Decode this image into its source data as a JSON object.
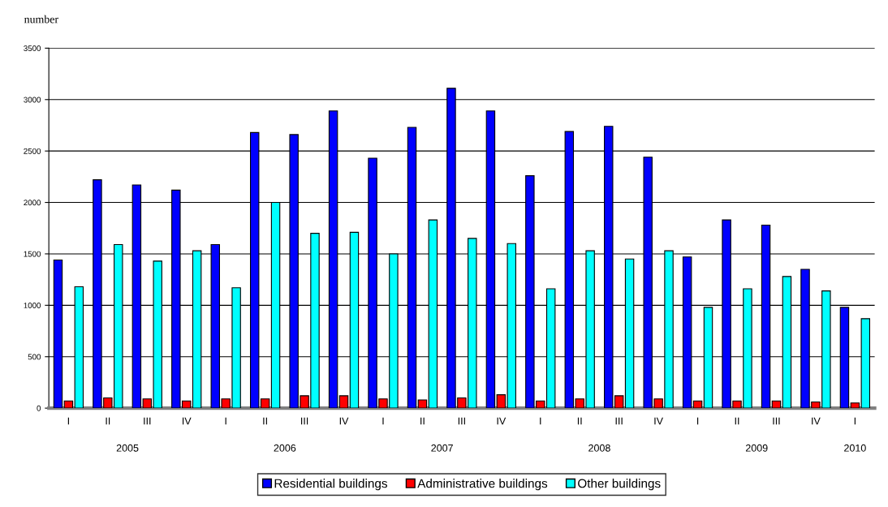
{
  "chart_data": {
    "type": "bar",
    "ylabel": "number",
    "categories": [
      "I",
      "II",
      "III",
      "IV",
      "I",
      "II",
      "III",
      "IV",
      "I",
      "II",
      "III",
      "IV",
      "I",
      "II",
      "III",
      "IV",
      "I",
      "II",
      "III",
      "IV",
      "I"
    ],
    "series": [
      {
        "name": "Residential buildings",
        "color": "#0000ff",
        "values": [
          1440,
          2220,
          2170,
          2120,
          1590,
          2680,
          2660,
          2890,
          2430,
          2730,
          3110,
          2890,
          2260,
          2690,
          2740,
          2440,
          1470,
          1830,
          1780,
          1350,
          980
        ]
      },
      {
        "name": "Administrative buildings",
        "color": "#ff0000",
        "values": [
          70,
          100,
          90,
          70,
          90,
          90,
          120,
          120,
          90,
          80,
          100,
          130,
          70,
          90,
          120,
          90,
          70,
          70,
          70,
          60,
          50
        ]
      },
      {
        "name": "Other buildings",
        "color": "#00ffff",
        "values": [
          1180,
          1590,
          1430,
          1530,
          1170,
          2000,
          1700,
          1710,
          1500,
          1830,
          1650,
          1600,
          1160,
          1530,
          1450,
          1530,
          980,
          1160,
          1280,
          1140,
          870
        ]
      }
    ],
    "ylim": [
      0,
      3500
    ],
    "yticks": [
      0,
      500,
      1000,
      1500,
      2000,
      2500,
      3000,
      3500
    ],
    "grid": "y",
    "legend": "bottom",
    "annotations": [
      "2005",
      "2006",
      "2007",
      "2008",
      "2009",
      "2010"
    ]
  }
}
